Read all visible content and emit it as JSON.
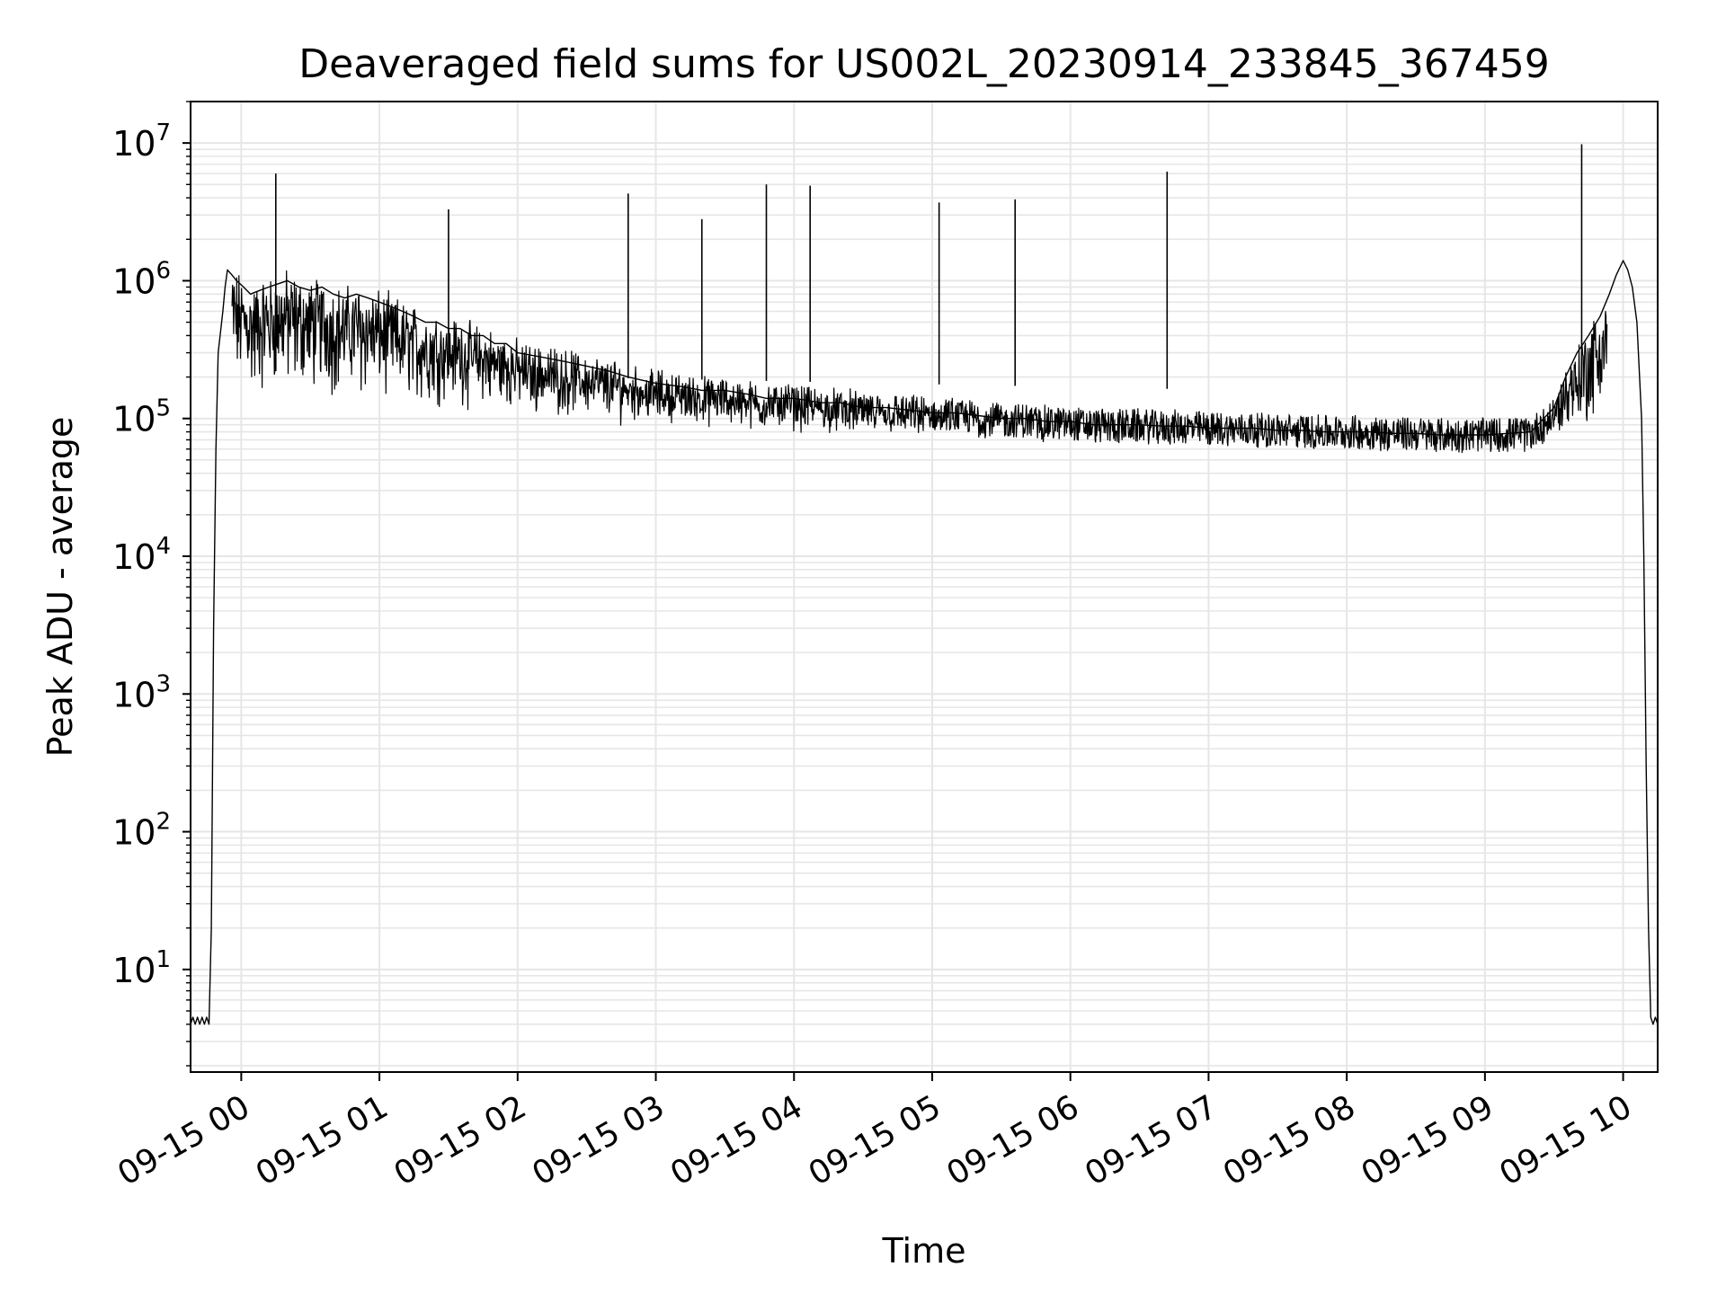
{
  "chart_data": {
    "type": "line",
    "title": "Deaveraged field sums for US002L_20230914_233845_367459",
    "xlabel": "Time",
    "ylabel": "Peak ADU - average",
    "yscale": "log",
    "ylim": [
      1.8,
      20000000
    ],
    "xlim": [
      "2023-09-14 23:38",
      "2023-09-15 10:15"
    ],
    "x_ticks": [
      {
        "value": "2023-09-15 00:00",
        "label": "09-15 00"
      },
      {
        "value": "2023-09-15 01:00",
        "label": "09-15 01"
      },
      {
        "value": "2023-09-15 02:00",
        "label": "09-15 02"
      },
      {
        "value": "2023-09-15 03:00",
        "label": "09-15 03"
      },
      {
        "value": "2023-09-15 04:00",
        "label": "09-15 04"
      },
      {
        "value": "2023-09-15 05:00",
        "label": "09-15 05"
      },
      {
        "value": "2023-09-15 06:00",
        "label": "09-15 06"
      },
      {
        "value": "2023-09-15 07:00",
        "label": "09-15 07"
      },
      {
        "value": "2023-09-15 08:00",
        "label": "09-15 08"
      },
      {
        "value": "2023-09-15 09:00",
        "label": "09-15 09"
      },
      {
        "value": "2023-09-15 10:00",
        "label": "09-15 10"
      }
    ],
    "y_ticks": [
      {
        "value": 10,
        "base": "10",
        "exp": "1"
      },
      {
        "value": 100,
        "base": "10",
        "exp": "2"
      },
      {
        "value": 1000,
        "base": "10",
        "exp": "3"
      },
      {
        "value": 10000,
        "base": "10",
        "exp": "4"
      },
      {
        "value": 100000,
        "base": "10",
        "exp": "5"
      },
      {
        "value": 1000000,
        "base": "10",
        "exp": "6"
      },
      {
        "value": 10000000,
        "base": "10",
        "exp": "7"
      }
    ],
    "grid": true,
    "line_color": "#000000",
    "grid_color": "#e6e6e6",
    "series": [
      {
        "x": [
          "2023-09-14 23:38",
          "2023-09-14 23:39",
          "2023-09-14 23:40",
          "2023-09-14 23:41",
          "2023-09-14 23:42",
          "2023-09-14 23:43",
          "2023-09-14 23:44",
          "2023-09-14 23:45",
          "2023-09-14 23:46",
          "2023-09-14 23:47",
          "2023-09-14 23:48",
          "2023-09-14 23:49",
          "2023-09-14 23:50",
          "2023-09-14 23:52",
          "2023-09-14 23:53",
          "2023-09-14 23:54",
          "2023-09-14 23:56",
          "2023-09-14 23:58",
          "2023-09-15 00:01",
          "2023-09-15 00:04",
          "2023-09-15 00:08",
          "2023-09-15 00:12",
          "2023-09-15 00:16",
          "2023-09-15 00:20",
          "2023-09-15 00:25",
          "2023-09-15 00:30",
          "2023-09-15 00:35",
          "2023-09-15 00:40",
          "2023-09-15 00:45",
          "2023-09-15 00:50",
          "2023-09-15 00:55",
          "2023-09-15 01:00",
          "2023-09-15 01:05",
          "2023-09-15 01:10",
          "2023-09-15 01:15",
          "2023-09-15 01:20",
          "2023-09-15 01:25",
          "2023-09-15 01:30",
          "2023-09-15 01:35",
          "2023-09-15 01:40",
          "2023-09-15 01:45",
          "2023-09-15 01:50",
          "2023-09-15 01:55",
          "2023-09-15 02:00",
          "2023-09-15 02:10",
          "2023-09-15 02:20",
          "2023-09-15 02:30",
          "2023-09-15 02:40",
          "2023-09-15 02:48",
          "2023-09-15 03:00",
          "2023-09-15 03:12",
          "2023-09-15 03:20",
          "2023-09-15 03:30",
          "2023-09-15 03:40",
          "2023-09-15 03:48",
          "2023-09-15 04:00",
          "2023-09-15 04:12",
          "2023-09-15 04:20",
          "2023-09-15 04:30",
          "2023-09-15 04:40",
          "2023-09-15 04:50",
          "2023-09-15 05:00",
          "2023-09-15 05:10",
          "2023-09-15 05:20",
          "2023-09-15 05:30",
          "2023-09-15 05:40",
          "2023-09-15 05:50",
          "2023-09-15 06:00",
          "2023-09-15 06:10",
          "2023-09-15 06:20",
          "2023-09-15 06:30",
          "2023-09-15 06:40",
          "2023-09-15 06:50",
          "2023-09-15 07:00",
          "2023-09-15 07:10",
          "2023-09-15 07:20",
          "2023-09-15 07:30",
          "2023-09-15 07:40",
          "2023-09-15 07:50",
          "2023-09-15 08:00",
          "2023-09-15 08:10",
          "2023-09-15 08:20",
          "2023-09-15 08:30",
          "2023-09-15 08:40",
          "2023-09-15 08:50",
          "2023-09-15 09:00",
          "2023-09-15 09:10",
          "2023-09-15 09:20",
          "2023-09-15 09:30",
          "2023-09-15 09:35",
          "2023-09-15 09:40",
          "2023-09-15 09:45",
          "2023-09-15 09:50",
          "2023-09-15 09:54",
          "2023-09-15 09:57",
          "2023-09-15 10:00",
          "2023-09-15 10:02",
          "2023-09-15 10:04",
          "2023-09-15 10:06",
          "2023-09-15 10:08",
          "2023-09-15 10:09",
          "2023-09-15 10:10",
          "2023-09-15 10:11",
          "2023-09-15 10:12",
          "2023-09-15 10:13",
          "2023-09-15 10:14",
          "2023-09-15 10:15"
        ],
        "y": [
          4,
          4.5,
          4,
          4.5,
          4,
          4.5,
          4,
          4.5,
          4,
          20,
          3000,
          60000,
          300000,
          600000,
          900000,
          1200000,
          1100000,
          1000000,
          900000,
          800000,
          850000,
          900000,
          950000,
          1000000,
          900000,
          850000,
          900000,
          800000,
          750000,
          800000,
          750000,
          700000,
          650000,
          600000,
          550000,
          500000,
          500000,
          450000,
          450000,
          400000,
          400000,
          350000,
          350000,
          300000,
          280000,
          260000,
          240000,
          220000,
          200000,
          180000,
          170000,
          160000,
          160000,
          150000,
          140000,
          140000,
          130000,
          130000,
          120000,
          120000,
          115000,
          110000,
          110000,
          105000,
          100000,
          100000,
          95000,
          95000,
          90000,
          90000,
          90000,
          88000,
          88000,
          85000,
          85000,
          85000,
          82000,
          82000,
          80000,
          80000,
          80000,
          78000,
          78000,
          76000,
          76000,
          76000,
          78000,
          80000,
          120000,
          200000,
          300000,
          400000,
          550000,
          800000,
          1100000,
          1400000,
          1200000,
          900000,
          500000,
          100000,
          10000,
          300,
          20,
          4.5,
          4,
          4.5,
          4
        ]
      }
    ],
    "spikes": [
      {
        "x": "2023-09-15 00:15",
        "y": 6000000
      },
      {
        "x": "2023-09-15 01:30",
        "y": 3300000
      },
      {
        "x": "2023-09-15 02:48",
        "y": 4300000
      },
      {
        "x": "2023-09-15 03:20",
        "y": 2800000
      },
      {
        "x": "2023-09-15 03:48",
        "y": 5000000
      },
      {
        "x": "2023-09-15 04:07",
        "y": 4900000
      },
      {
        "x": "2023-09-15 05:03",
        "y": 3700000
      },
      {
        "x": "2023-09-15 05:36",
        "y": 3900000
      },
      {
        "x": "2023-09-15 06:42",
        "y": 6200000
      },
      {
        "x": "2023-09-15 09:42",
        "y": 9800000
      }
    ]
  }
}
